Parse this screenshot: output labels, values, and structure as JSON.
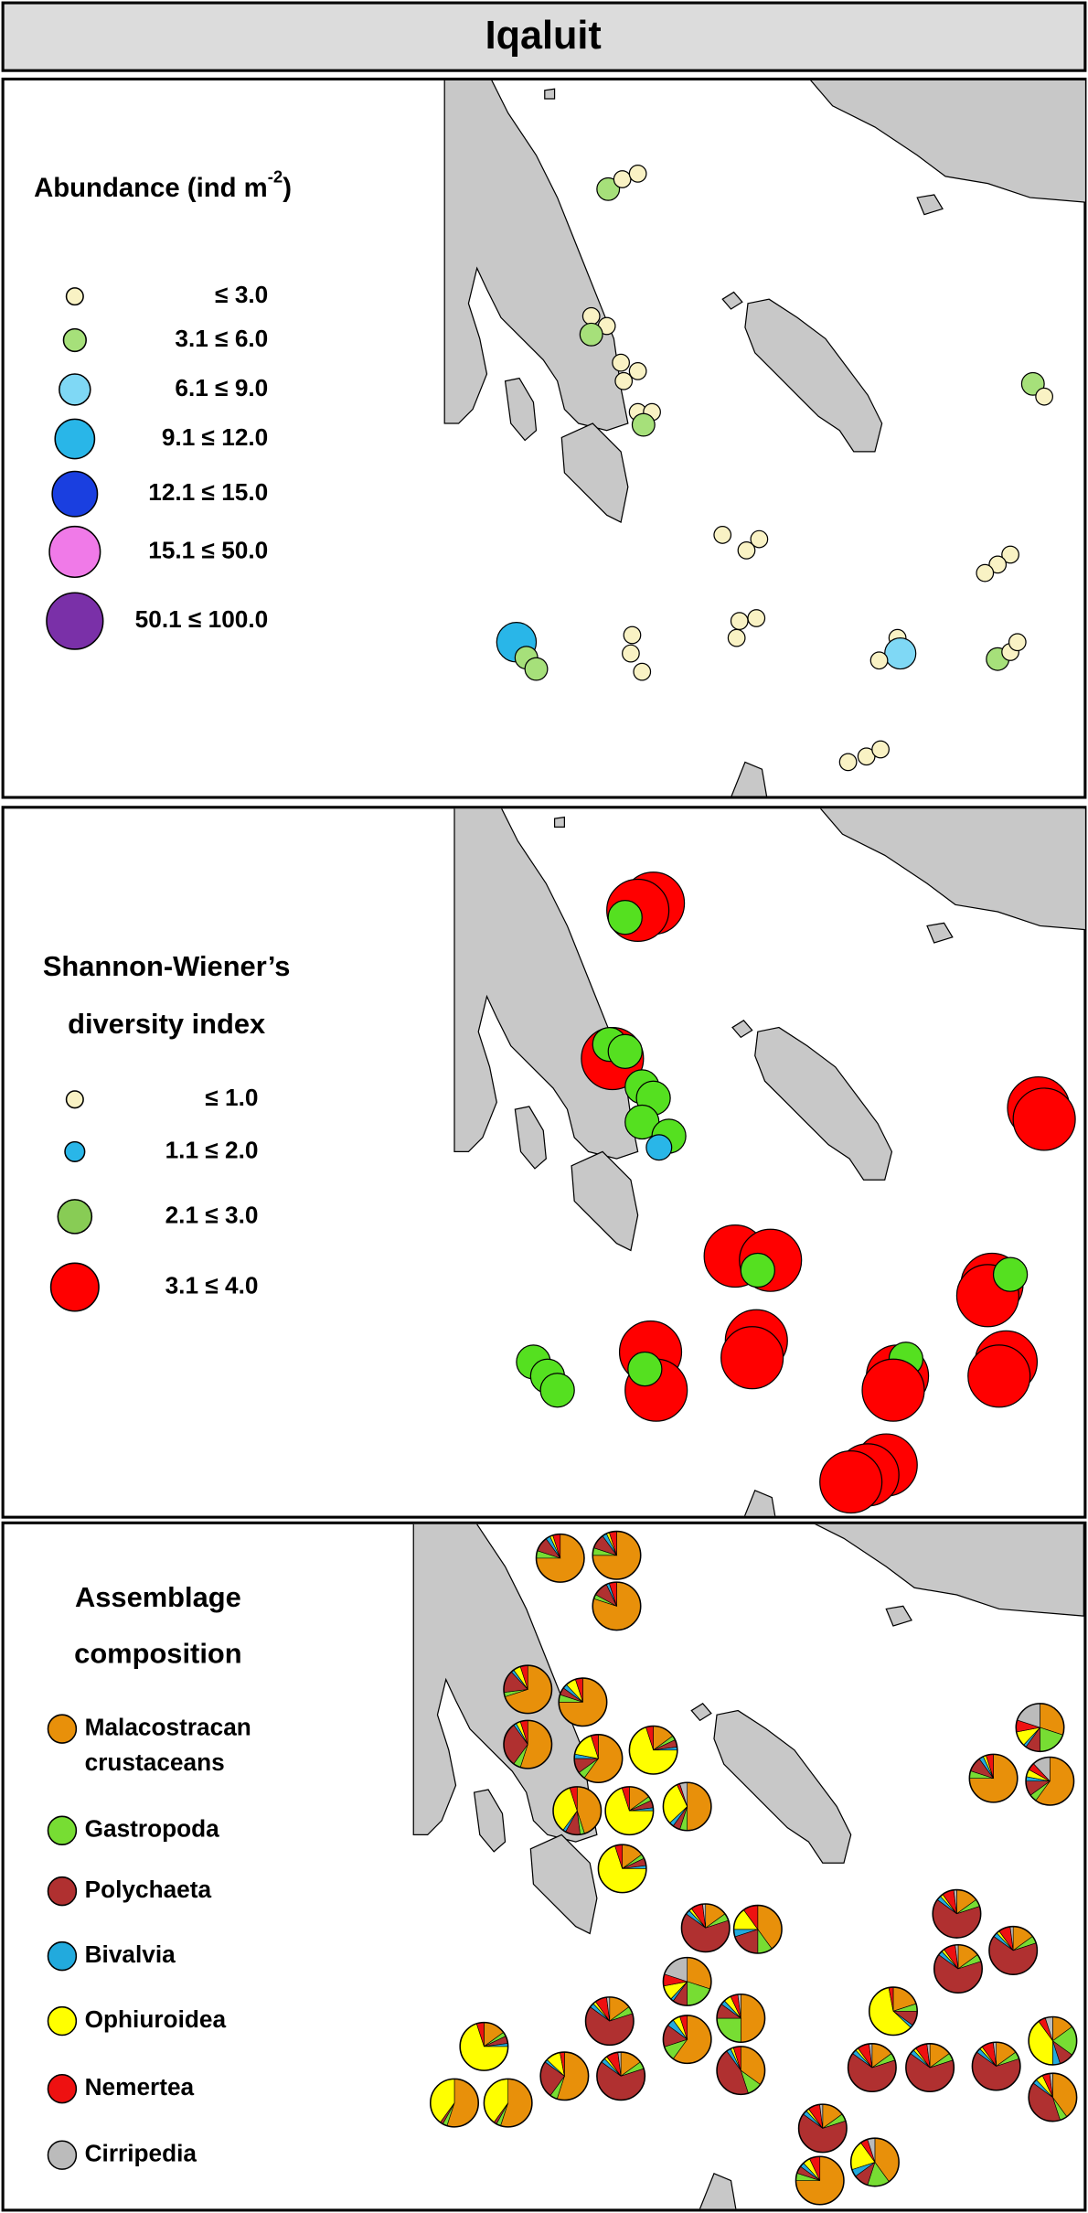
{
  "title": "Iqaluit",
  "panels": [
    {
      "legend_title": [
        "Abundance (ind m",
        "-2",
        ")"
      ],
      "classes": [
        "≤ 3.0",
        "3.1 ≤ 6.0",
        "6.1 ≤ 9.0",
        "9.1 ≤ 12.0",
        "12.1 ≤ 15.0",
        "15.1 ≤ 50.0",
        "50.1 ≤ 100.0"
      ],
      "colors": [
        "#f9f2c4",
        "#a6e07a",
        "#7fd8f5",
        "#29b6e8",
        "#1a3fe0",
        "#f07ae8",
        "#7a30a8"
      ],
      "sites": [
        1,
        0,
        0,
        0,
        0,
        1,
        0,
        0,
        0,
        0,
        0,
        1,
        0,
        0,
        0,
        0,
        0,
        0,
        3,
        1,
        1,
        0,
        0,
        0,
        0,
        0,
        0,
        0,
        2,
        0,
        1,
        0,
        0,
        0,
        0,
        0,
        1,
        0
      ]
    },
    {
      "legend_title": [
        "Shannon-Wiener’s",
        "diversity index"
      ],
      "classes": [
        "≤ 1.0",
        "1.1 ≤ 2.0",
        "2.1 ≤ 3.0",
        "3.1 ≤ 4.0"
      ],
      "colors": [
        "#f9f2c4",
        "#29b6e8",
        "#88cc55",
        "#ff0000"
      ],
      "sites": [
        3,
        3,
        2,
        3,
        2,
        2,
        2,
        2,
        2,
        2,
        1,
        3,
        3,
        3,
        3,
        2,
        3,
        3,
        2,
        3,
        3,
        2,
        3,
        3,
        3,
        2,
        3,
        3,
        3,
        2,
        2,
        2,
        3,
        3,
        3
      ]
    },
    {
      "legend_title": [
        "Assemblage",
        "composition"
      ],
      "taxa": [
        {
          "name": [
            "Malacostracan",
            "crustaceans"
          ],
          "color": "#e8900a"
        },
        {
          "name": [
            "Gastropoda"
          ],
          "color": "#77dd33"
        },
        {
          "name": [
            "Polychaeta"
          ],
          "color": "#b03030"
        },
        {
          "name": [
            "Bivalvia"
          ],
          "color": "#22aadd"
        },
        {
          "name": [
            "Ophiuroidea"
          ],
          "color": "#ffff00"
        },
        {
          "name": [
            "Nemertea"
          ],
          "color": "#ee1111"
        },
        {
          "name": [
            "Cirripedia"
          ],
          "color": "#bbbbbb"
        }
      ],
      "sites": [
        [
          75,
          5,
          10,
          3,
          2,
          5,
          0
        ],
        [
          75,
          5,
          10,
          3,
          2,
          5,
          0
        ],
        [
          80,
          3,
          10,
          2,
          0,
          5,
          0
        ],
        [
          70,
          3,
          15,
          2,
          5,
          5,
          0
        ],
        [
          75,
          5,
          5,
          3,
          7,
          5,
          0
        ],
        [
          55,
          5,
          30,
          2,
          3,
          5,
          0
        ],
        [
          60,
          5,
          10,
          3,
          17,
          5,
          0
        ],
        [
          15,
          3,
          5,
          2,
          70,
          5,
          0
        ],
        [
          45,
          3,
          10,
          2,
          35,
          5,
          0
        ],
        [
          15,
          3,
          5,
          2,
          70,
          5,
          0
        ],
        [
          50,
          5,
          5,
          3,
          30,
          2,
          5
        ],
        [
          15,
          3,
          5,
          2,
          70,
          5,
          0
        ],
        [
          30,
          20,
          10,
          2,
          10,
          8,
          20
        ],
        [
          75,
          5,
          10,
          3,
          2,
          5,
          0
        ],
        [
          60,
          5,
          10,
          3,
          5,
          5,
          12
        ],
        [
          15,
          5,
          65,
          3,
          2,
          8,
          2
        ],
        [
          40,
          10,
          20,
          5,
          15,
          10,
          0
        ],
        [
          30,
          20,
          10,
          2,
          10,
          8,
          20
        ],
        [
          50,
          25,
          10,
          3,
          5,
          5,
          2
        ],
        [
          60,
          10,
          15,
          5,
          5,
          5,
          0
        ],
        [
          35,
          10,
          45,
          3,
          2,
          5,
          0
        ],
        [
          15,
          5,
          65,
          3,
          2,
          8,
          2
        ],
        [
          15,
          5,
          65,
          3,
          2,
          8,
          2
        ],
        [
          55,
          5,
          25,
          2,
          10,
          3,
          0
        ],
        [
          15,
          3,
          5,
          2,
          70,
          5,
          0
        ],
        [
          55,
          3,
          2,
          0,
          40,
          0,
          0
        ],
        [
          55,
          3,
          2,
          0,
          40,
          0,
          0
        ],
        [
          20,
          5,
          10,
          2,
          60,
          3,
          0
        ],
        [
          15,
          5,
          65,
          3,
          2,
          8,
          2
        ],
        [
          15,
          5,
          65,
          3,
          2,
          8,
          2
        ],
        [
          15,
          5,
          65,
          3,
          2,
          8,
          2
        ],
        [
          15,
          5,
          65,
          3,
          2,
          8,
          2
        ],
        [
          15,
          5,
          65,
          3,
          2,
          8,
          2
        ],
        [
          15,
          5,
          65,
          3,
          2,
          8,
          2
        ],
        [
          15,
          20,
          10,
          5,
          40,
          5,
          5
        ],
        [
          40,
          5,
          40,
          3,
          5,
          5,
          2
        ],
        [
          15,
          5,
          65,
          3,
          2,
          8,
          2
        ],
        [
          75,
          5,
          5,
          3,
          5,
          7,
          0
        ],
        [
          40,
          15,
          10,
          5,
          20,
          5,
          5
        ]
      ]
    }
  ]
}
